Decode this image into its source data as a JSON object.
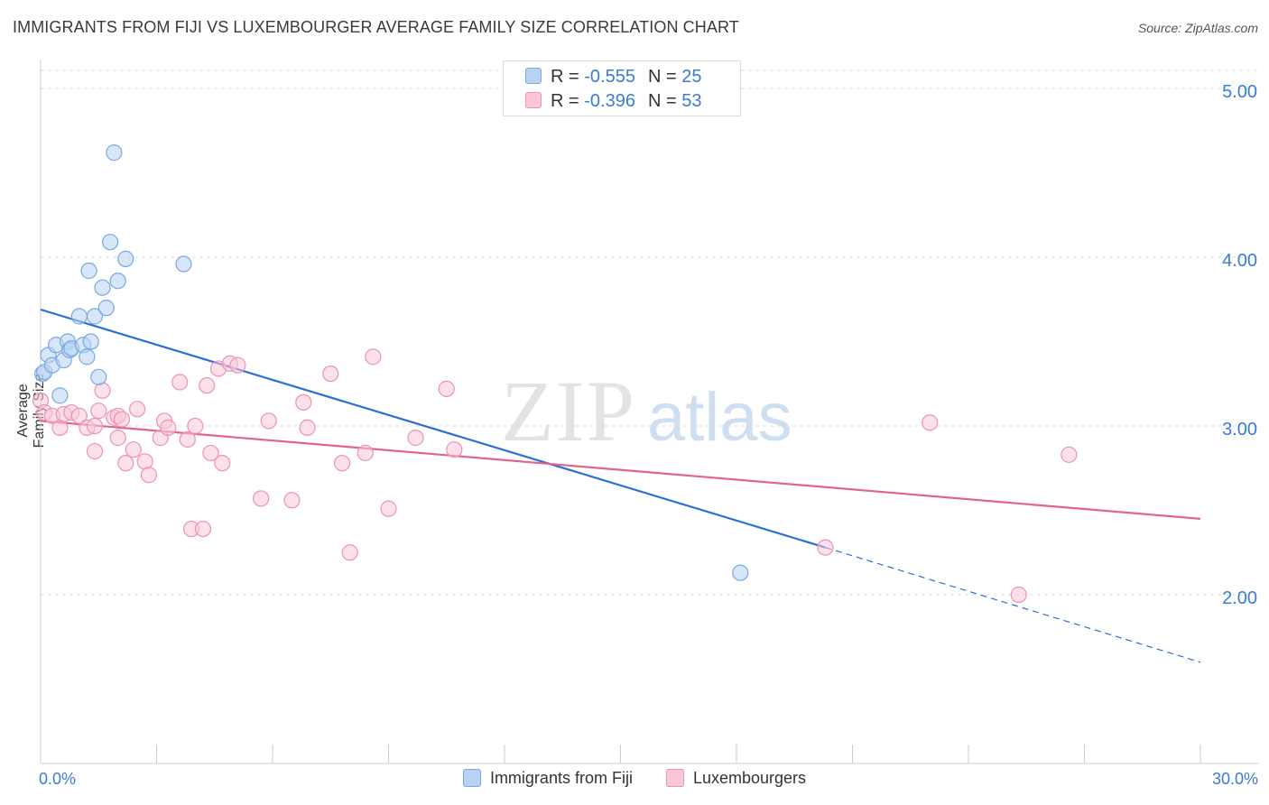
{
  "title": "IMMIGRANTS FROM FIJI VS LUXEMBOURGER AVERAGE FAMILY SIZE CORRELATION CHART",
  "source": "Source: ZipAtlas.com",
  "watermark": {
    "zip": "ZIP",
    "atlas": "atlas"
  },
  "legend": {
    "r_label": "R =",
    "n_label": "N =",
    "rows": [
      {
        "r": "-0.555",
        "n": "25"
      },
      {
        "r": "-0.396",
        "n": "53"
      }
    ]
  },
  "colors": {
    "fiji_fill": "#b8d2f4",
    "fiji_stroke": "#7aa8e0",
    "fiji_line": "#2c6fd4",
    "lux_fill": "#f9c7d8",
    "lux_stroke": "#ec93b2",
    "lux_line": "#e0648e",
    "tick_text": "#3a7bd5",
    "grid": "#dddddd"
  },
  "chart_data": {
    "type": "scatter",
    "title": "IMMIGRANTS FROM FIJI VS LUXEMBOURGER AVERAGE FAMILY SIZE CORRELATION CHART",
    "xlabel": "",
    "ylabel": "Average Family Size",
    "xlim": [
      0,
      30
    ],
    "ylim": [
      1.0,
      5.15
    ],
    "x_tick_labels": [
      "0.0%",
      "30.0%"
    ],
    "y_ticks": [
      2.0,
      3.0,
      4.0,
      5.0
    ],
    "y_tick_labels": [
      "2.00",
      "3.00",
      "4.00",
      "5.00"
    ],
    "series": [
      {
        "name": "Immigrants from Fiji",
        "r": -0.555,
        "n": 25,
        "points": [
          [
            0.05,
            3.31
          ],
          [
            0.1,
            3.32
          ],
          [
            0.2,
            3.42
          ],
          [
            0.3,
            3.36
          ],
          [
            0.4,
            3.48
          ],
          [
            0.5,
            3.18
          ],
          [
            0.6,
            3.39
          ],
          [
            0.7,
            3.5
          ],
          [
            0.75,
            3.45
          ],
          [
            0.8,
            3.46
          ],
          [
            1.0,
            3.65
          ],
          [
            1.1,
            3.48
          ],
          [
            1.2,
            3.41
          ],
          [
            1.3,
            3.5
          ],
          [
            1.25,
            3.92
          ],
          [
            1.4,
            3.65
          ],
          [
            1.5,
            3.29
          ],
          [
            1.6,
            3.82
          ],
          [
            1.7,
            3.7
          ],
          [
            1.8,
            4.09
          ],
          [
            1.9,
            4.62
          ],
          [
            2.0,
            3.86
          ],
          [
            2.2,
            3.99
          ],
          [
            3.7,
            3.96
          ],
          [
            18.1,
            2.13
          ]
        ],
        "trend": {
          "x0": 0,
          "y0": 3.69,
          "x1": 20.3,
          "y1": 2.28,
          "dash_x1": 30,
          "dash_y1": 1.6
        }
      },
      {
        "name": "Luxembourgers",
        "r": -0.396,
        "n": 53,
        "points": [
          [
            0.0,
            3.15
          ],
          [
            0.1,
            3.08
          ],
          [
            0.3,
            3.06
          ],
          [
            0.5,
            2.99
          ],
          [
            0.6,
            3.07
          ],
          [
            0.8,
            3.08
          ],
          [
            1.0,
            3.06
          ],
          [
            1.2,
            2.99
          ],
          [
            1.4,
            3.0
          ],
          [
            1.5,
            3.09
          ],
          [
            1.4,
            2.85
          ],
          [
            1.6,
            3.21
          ],
          [
            1.9,
            3.05
          ],
          [
            2.0,
            3.06
          ],
          [
            2.0,
            2.93
          ],
          [
            2.1,
            3.04
          ],
          [
            2.2,
            2.78
          ],
          [
            2.4,
            2.86
          ],
          [
            2.5,
            3.1
          ],
          [
            2.7,
            2.79
          ],
          [
            2.8,
            2.71
          ],
          [
            3.1,
            2.93
          ],
          [
            3.2,
            3.03
          ],
          [
            3.3,
            2.99
          ],
          [
            3.6,
            3.26
          ],
          [
            3.8,
            2.92
          ],
          [
            3.9,
            2.39
          ],
          [
            4.0,
            3.0
          ],
          [
            4.2,
            2.39
          ],
          [
            4.3,
            3.24
          ],
          [
            4.4,
            2.84
          ],
          [
            4.6,
            3.34
          ],
          [
            4.7,
            2.78
          ],
          [
            4.9,
            3.37
          ],
          [
            5.1,
            3.36
          ],
          [
            5.7,
            2.57
          ],
          [
            5.9,
            3.03
          ],
          [
            6.5,
            2.56
          ],
          [
            6.8,
            3.14
          ],
          [
            6.9,
            2.99
          ],
          [
            7.5,
            3.31
          ],
          [
            7.8,
            2.78
          ],
          [
            8.0,
            2.25
          ],
          [
            8.4,
            2.84
          ],
          [
            8.6,
            3.41
          ],
          [
            9.0,
            2.51
          ],
          [
            9.7,
            2.93
          ],
          [
            10.5,
            3.22
          ],
          [
            10.7,
            2.86
          ],
          [
            20.3,
            2.28
          ],
          [
            23.0,
            3.02
          ],
          [
            25.3,
            2.0
          ],
          [
            26.6,
            2.83
          ]
        ],
        "trend": {
          "x0": 0,
          "y0": 3.03,
          "x1": 30,
          "y1": 2.45
        }
      }
    ]
  }
}
